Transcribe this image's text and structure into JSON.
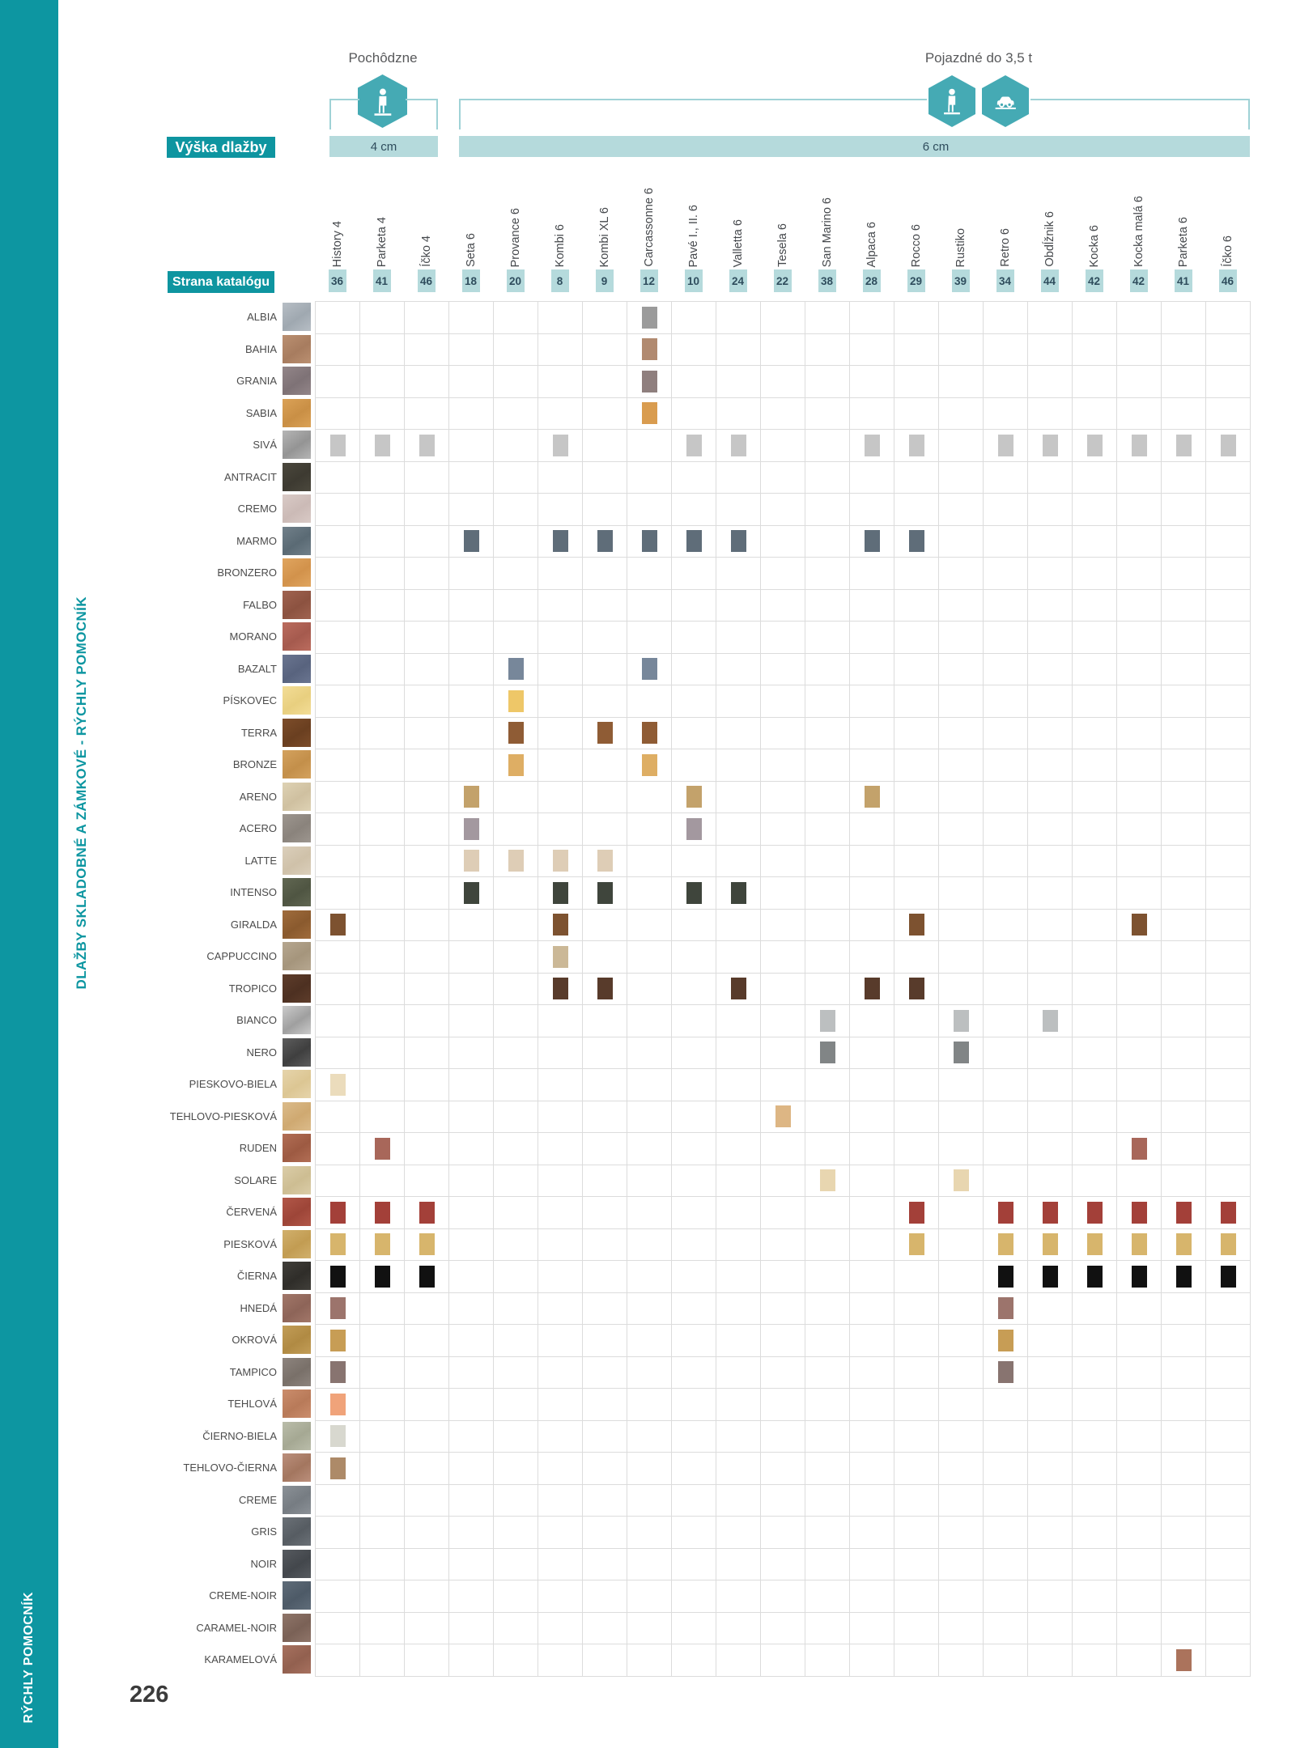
{
  "page": {
    "number": "226"
  },
  "sidebar": {
    "caption": "DLAŽBY SKLADOBNÉ A ZÁMKOVÉ - RÝCHLY POMOCNÍK",
    "footer_label": "RÝCHLY POMOCNÍK"
  },
  "legend": {
    "walkable_label": "Pochôdzne",
    "drivable_label": "Pojazdné do 3,5 t",
    "height_label": "Výška dlažby",
    "catalog_page_label": "Strana katalógu",
    "height_4": "4 cm",
    "height_6": "6 cm"
  },
  "colors": {
    "accent_teal": "#0d96a1",
    "hex_teal": "#45aab4",
    "light_teal": "#b5dadc",
    "bracket": "#9fd2d6",
    "grid_line": "#dcdcdc"
  },
  "columns": [
    {
      "label": "History 4",
      "page": "36"
    },
    {
      "label": "Parketa 4",
      "page": "41"
    },
    {
      "label": "Íčko 4",
      "page": "46"
    },
    {
      "label": "Seta 6",
      "page": "18"
    },
    {
      "label": "Provance 6",
      "page": "20"
    },
    {
      "label": "Kombi 6",
      "page": "8"
    },
    {
      "label": "Kombi XL 6",
      "page": "9"
    },
    {
      "label": "Carcassonne 6",
      "page": "12"
    },
    {
      "label": "Pavé I., II. 6",
      "page": "10"
    },
    {
      "label": "Valletta 6",
      "page": "24"
    },
    {
      "label": "Tesela 6",
      "page": "22"
    },
    {
      "label": "San Marino 6",
      "page": "38"
    },
    {
      "label": "Alpaca 6",
      "page": "28"
    },
    {
      "label": "Rocco 6",
      "page": "29"
    },
    {
      "label": "Rustiko",
      "page": "39"
    },
    {
      "label": "Retro 6",
      "page": "34"
    },
    {
      "label": "Obdĺžnik 6",
      "page": "44"
    },
    {
      "label": "Kocka 6",
      "page": "42"
    },
    {
      "label": "Kocka malá 6",
      "page": "42"
    },
    {
      "label": "Parketa 6",
      "page": "41"
    },
    {
      "label": "Íčko 6",
      "page": "46"
    }
  ],
  "rows": [
    {
      "label": "ALBIA",
      "swatch": [
        "#b7bec5",
        "#9fa8b0"
      ],
      "dot": "#9b9b9b",
      "cols": [
        8
      ]
    },
    {
      "label": "BAHIA",
      "swatch": [
        "#bb9071",
        "#a77c5f"
      ],
      "dot": "#b18a70",
      "cols": [
        8
      ]
    },
    {
      "label": "GRANIA",
      "swatch": [
        "#938689",
        "#7e7276"
      ],
      "dot": "#8f7f7e",
      "cols": [
        8
      ]
    },
    {
      "label": "SABIA",
      "swatch": [
        "#dba257",
        "#c98f45"
      ],
      "dot": "#d99c4f",
      "cols": [
        8
      ]
    },
    {
      "label": "SIVÁ",
      "swatch": [
        "#b5b5b5",
        "#949494"
      ],
      "dot": "#c6c6c6",
      "cols": [
        1,
        2,
        3,
        6,
        9,
        10,
        13,
        14,
        16,
        17,
        18,
        19,
        20,
        21
      ]
    },
    {
      "label": "ANTRACIT",
      "swatch": [
        "#4b483d",
        "#3d3a31"
      ],
      "dot": "#4b483d",
      "cols": []
    },
    {
      "label": "CREMO",
      "swatch": [
        "#d9cac6",
        "#cbbab6"
      ],
      "dot": "#d9cac6",
      "cols": []
    },
    {
      "label": "MARMO",
      "swatch": [
        "#71808a",
        "#5a6a74"
      ],
      "dot": "#5f6d79",
      "cols": [
        4,
        6,
        7,
        8,
        9,
        10,
        13,
        14
      ]
    },
    {
      "label": "BRONZERO",
      "swatch": [
        "#e0a55f",
        "#d2924b"
      ],
      "dot": "#e0a55f",
      "cols": []
    },
    {
      "label": "FALBO",
      "swatch": [
        "#a06350",
        "#8c5240"
      ],
      "dot": "#a06350",
      "cols": []
    },
    {
      "label": "MORANO",
      "swatch": [
        "#bb6c5e",
        "#a55a4e"
      ],
      "dot": "#bb6c5e",
      "cols": []
    },
    {
      "label": "BAZALT",
      "swatch": [
        "#6a7590",
        "#58637e"
      ],
      "dot": "#77879a",
      "cols": [
        5,
        8
      ]
    },
    {
      "label": "PÍSKOVEC",
      "swatch": [
        "#f3dd96",
        "#e8cf7f"
      ],
      "dot": "#eec768",
      "cols": [
        5
      ]
    },
    {
      "label": "TERRA",
      "swatch": [
        "#7d4d2a",
        "#6a3f20"
      ],
      "dot": "#8f5c35",
      "cols": [
        5,
        7,
        8
      ]
    },
    {
      "label": "BRONZE",
      "swatch": [
        "#d4a25e",
        "#c38f4a"
      ],
      "dot": "#deae64",
      "cols": [
        5,
        8
      ]
    },
    {
      "label": "ARENO",
      "swatch": [
        "#ded2b4",
        "#cfc0a0"
      ],
      "dot": "#c3a26b",
      "cols": [
        4,
        9,
        13
      ]
    },
    {
      "label": "ACERO",
      "swatch": [
        "#9d968f",
        "#8a837c"
      ],
      "dot": "#a3989f",
      "cols": [
        4,
        9
      ]
    },
    {
      "label": "LATTE",
      "swatch": [
        "#dbcfbb",
        "#cfc1a9"
      ],
      "dot": "#decdb6",
      "cols": [
        4,
        5,
        6,
        7
      ]
    },
    {
      "label": "INTENSO",
      "swatch": [
        "#616752",
        "#4f5542"
      ],
      "dot": "#3f453c",
      "cols": [
        4,
        6,
        7,
        9,
        10
      ]
    },
    {
      "label": "GIRALDA",
      "swatch": [
        "#a06c3c",
        "#8a5a2e"
      ],
      "dot": "#7d5230",
      "cols": [
        1,
        6,
        14,
        19
      ]
    },
    {
      "label": "CAPPUCCINO",
      "swatch": [
        "#b6a790",
        "#a5957c"
      ],
      "dot": "#cbb897",
      "cols": [
        6
      ]
    },
    {
      "label": "TROPICO",
      "swatch": [
        "#5e3d2b",
        "#4d3021"
      ],
      "dot": "#583b2b",
      "cols": [
        6,
        7,
        10,
        13,
        14
      ]
    },
    {
      "label": "BIANCO",
      "swatch": [
        "#cbcbcb",
        "#9f9f9f"
      ],
      "dot": "#bcbfc0",
      "cols": [
        12,
        15,
        17
      ]
    },
    {
      "label": "NERO",
      "swatch": [
        "#5d5d5d",
        "#3f3f3f"
      ],
      "dot": "#818586",
      "cols": [
        12,
        15
      ]
    },
    {
      "label": "PIESKOVO-BIELA",
      "swatch": [
        "#e6d4ab",
        "#dcc693"
      ],
      "dot": "#ebdcbc",
      "cols": [
        1
      ]
    },
    {
      "label": "TEHLOVO-PIESKOVÁ",
      "swatch": [
        "#dbbb8a",
        "#cfa971"
      ],
      "dot": "#ddb684",
      "cols": [
        11
      ]
    },
    {
      "label": "RUDEN",
      "swatch": [
        "#b26e55",
        "#9d5a42"
      ],
      "dot": "#a8675a",
      "cols": [
        2,
        19
      ]
    },
    {
      "label": "SOLARE",
      "swatch": [
        "#dbcda8",
        "#cdbd92"
      ],
      "dot": "#e8d6b0",
      "cols": [
        12,
        15
      ]
    },
    {
      "label": "ČERVENÁ",
      "swatch": [
        "#b25748",
        "#9d4538"
      ],
      "dot": "#a34039",
      "cols": [
        1,
        2,
        3,
        14,
        16,
        17,
        18,
        19,
        20,
        21
      ]
    },
    {
      "label": "PIESKOVÁ",
      "swatch": [
        "#d1b06c",
        "#c29c52"
      ],
      "dot": "#d7b56c",
      "cols": [
        1,
        2,
        3,
        14,
        16,
        17,
        18,
        19,
        20,
        21
      ]
    },
    {
      "label": "ČIERNA",
      "swatch": [
        "#413f3a",
        "#2f2d29"
      ],
      "dot": "#111111",
      "cols": [
        1,
        2,
        3,
        16,
        17,
        18,
        19,
        20,
        21
      ]
    },
    {
      "label": "HNEDÁ",
      "swatch": [
        "#a27769",
        "#8d6458"
      ],
      "dot": "#9c746c",
      "cols": [
        1,
        16
      ]
    },
    {
      "label": "OKROVÁ",
      "swatch": [
        "#c29d57",
        "#b08a43"
      ],
      "dot": "#c79d55",
      "cols": [
        1,
        16
      ]
    },
    {
      "label": "TAMPICO",
      "swatch": [
        "#8d847e",
        "#797069"
      ],
      "dot": "#887470",
      "cols": [
        1,
        16
      ]
    },
    {
      "label": "TEHLOVÁ",
      "swatch": [
        "#cb8d6c",
        "#b87a59"
      ],
      "dot": "#f0a37a",
      "cols": [
        1
      ]
    },
    {
      "label": "ČIERNO-BIELA",
      "swatch": [
        "#babdaa",
        "#a5a893"
      ],
      "dot": "#d8d8cf",
      "cols": [
        1
      ]
    },
    {
      "label": "TEHLOVO-ČIERNA",
      "swatch": [
        "#bb8f7c",
        "#a3765f"
      ],
      "dot": "#ad8a68",
      "cols": [
        1
      ]
    },
    {
      "label": "CREME",
      "swatch": [
        "#8b9197",
        "#767c82"
      ],
      "dot": "#8b9197",
      "cols": []
    },
    {
      "label": "GRIS",
      "swatch": [
        "#6b7177",
        "#565c62"
      ],
      "dot": "#6b7177",
      "cols": []
    },
    {
      "label": "NOIR",
      "swatch": [
        "#565a5f",
        "#43474c"
      ],
      "dot": "#565a5f",
      "cols": []
    },
    {
      "label": "CREME-NOIR",
      "swatch": [
        "#5f6c79",
        "#4d5a67"
      ],
      "dot": "#5f6c79",
      "cols": []
    },
    {
      "label": "CARAMEL-NOIR",
      "swatch": [
        "#8f7569",
        "#7a6156"
      ],
      "dot": "#8f7569",
      "cols": []
    },
    {
      "label": "KARAMELOVÁ",
      "swatch": [
        "#a7715f",
        "#92604f"
      ],
      "dot": "#ab735c",
      "cols": [
        20
      ]
    }
  ]
}
